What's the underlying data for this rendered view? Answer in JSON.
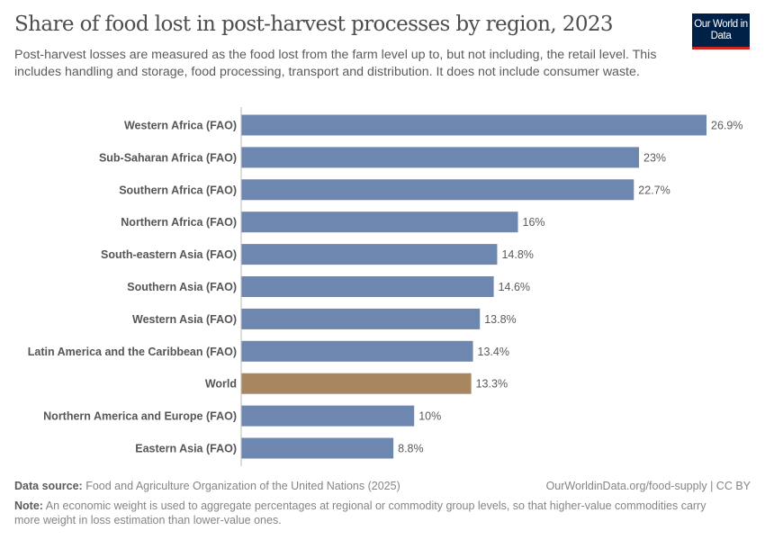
{
  "header": {
    "title": "Share of food lost in post-harvest processes by region, 2023",
    "subtitle": "Post-harvest losses are measured as the food lost from the farm level up to, but not including, the retail level. This includes handling and storage, food processing, transport and distribution. It does not include consumer waste.",
    "logo": "Our World in Data"
  },
  "chart_data": {
    "type": "bar",
    "orientation": "horizontal",
    "title": "Share of food lost in post-harvest processes by region, 2023",
    "categories": [
      "Western Africa (FAO)",
      "Sub-Saharan Africa (FAO)",
      "Southern Africa (FAO)",
      "Northern Africa (FAO)",
      "South-eastern Asia (FAO)",
      "Southern Asia (FAO)",
      "Western Asia (FAO)",
      "Latin America and the Caribbean (FAO)",
      "World",
      "Northern America and Europe (FAO)",
      "Eastern Asia (FAO)"
    ],
    "values": [
      26.9,
      23,
      22.7,
      16,
      14.8,
      14.6,
      13.8,
      13.4,
      13.3,
      10,
      8.8
    ],
    "labels": [
      "26.9%",
      "23%",
      "22.7%",
      "16%",
      "14.8%",
      "14.6%",
      "13.8%",
      "13.4%",
      "13.3%",
      "10%",
      "8.8%"
    ],
    "unit": "%",
    "xlim": [
      0,
      26.9
    ],
    "colors": {
      "default": "#6e87b1",
      "highlight": "#a8865f"
    },
    "highlight": "World"
  },
  "footer": {
    "source_label": "Data source:",
    "source": "Food and Agriculture Organization of the United Nations (2025)",
    "url": "OurWorldinData.org/food-supply | CC BY",
    "note_label": "Note:",
    "note": "An economic weight is used to aggregate percentages at regional or commodity group levels, so that higher-value commodities carry more weight in loss estimation than lower-value ones."
  }
}
